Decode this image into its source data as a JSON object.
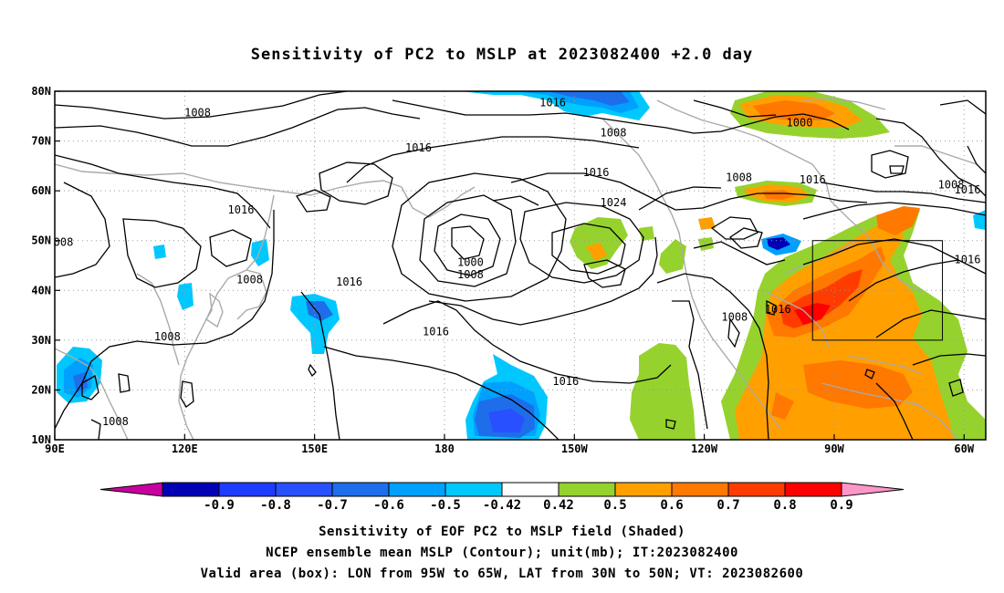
{
  "title": "Sensitivity of PC2 to MSLP at 2023082400 +2.0 day",
  "map": {
    "lon_range": [
      90,
      305
    ],
    "lat_range": [
      10,
      80
    ],
    "lon_ticks": [
      {
        "lon": 90,
        "label": "90E"
      },
      {
        "lon": 120,
        "label": "120E"
      },
      {
        "lon": 150,
        "label": "150E"
      },
      {
        "lon": 180,
        "label": "180"
      },
      {
        "lon": 210,
        "label": "150W"
      },
      {
        "lon": 240,
        "label": "120W"
      },
      {
        "lon": 270,
        "label": "90W"
      },
      {
        "lon": 300,
        "label": "60W"
      }
    ],
    "lat_ticks": [
      {
        "lat": 10,
        "label": "10N"
      },
      {
        "lat": 20,
        "label": "20N"
      },
      {
        "lat": 30,
        "label": "30N"
      },
      {
        "lat": 40,
        "label": "40N"
      },
      {
        "lat": 50,
        "label": "50N"
      },
      {
        "lat": 60,
        "label": "60N"
      },
      {
        "lat": 70,
        "label": "70N"
      },
      {
        "lat": 80,
        "label": "80N"
      }
    ],
    "grid": "dotted",
    "valid_box": {
      "lon_min": 265,
      "lon_max": 295,
      "lat_min": 30,
      "lat_max": 50
    },
    "contour_labels": [
      {
        "lon": 123,
        "lat": 75.5,
        "text": "1008"
      },
      {
        "lon": 205,
        "lat": 77.5,
        "text": "1016"
      },
      {
        "lon": 219,
        "lat": 71.5,
        "text": "1008"
      },
      {
        "lon": 262,
        "lat": 73.5,
        "text": "1000"
      },
      {
        "lon": 174,
        "lat": 68.5,
        "text": "1016"
      },
      {
        "lon": 215,
        "lat": 63.5,
        "text": "1016"
      },
      {
        "lon": 248,
        "lat": 62.5,
        "text": "1008"
      },
      {
        "lon": 265,
        "lat": 62,
        "text": "1016"
      },
      {
        "lon": 297,
        "lat": 61,
        "text": "1008"
      },
      {
        "lon": 304,
        "lat": 60,
        "text": "1016"
      },
      {
        "lon": 219,
        "lat": 57.5,
        "text": "1024"
      },
      {
        "lon": 133,
        "lat": 56,
        "text": "1016"
      },
      {
        "lon": 92,
        "lat": 49.5,
        "text": "008"
      },
      {
        "lon": 186,
        "lat": 45.5,
        "text": "1000"
      },
      {
        "lon": 186,
        "lat": 43,
        "text": "1008"
      },
      {
        "lon": 135,
        "lat": 42,
        "text": "1008"
      },
      {
        "lon": 158,
        "lat": 41.5,
        "text": "1016"
      },
      {
        "lon": 304,
        "lat": 46,
        "text": "1016"
      },
      {
        "lon": 257,
        "lat": 36,
        "text": "1016"
      },
      {
        "lon": 247,
        "lat": 34.5,
        "text": "1008"
      },
      {
        "lon": 178,
        "lat": 31.5,
        "text": "1016"
      },
      {
        "lon": 116,
        "lat": 30.5,
        "text": "1008"
      },
      {
        "lon": 208,
        "lat": 21.5,
        "text": "1016"
      },
      {
        "lon": 104,
        "lat": 13.5,
        "text": "1008"
      }
    ]
  },
  "colorbar": {
    "labels": [
      "-0.9",
      "-0.8",
      "-0.7",
      "-0.6",
      "-0.5",
      "-0.42",
      "0.42",
      "0.5",
      "0.6",
      "0.7",
      "0.8",
      "0.9"
    ],
    "colors": [
      "#0000b4",
      "#1e3cff",
      "#2850ff",
      "#1e6eeb",
      "#00a0ff",
      "#00c8ff",
      "#ffffff",
      "#96d22d",
      "#ffa000",
      "#ff7800",
      "#ff3c00",
      "#ff0000"
    ],
    "under_color": "#c800a0",
    "over_color": "#ff96c8"
  },
  "caption": {
    "line1": "Sensitivity of EOF PC2 to MSLP field (Shaded)",
    "line2": "NCEP ensemble mean MSLP (Contour); unit(mb); IT:2023082400",
    "line3": "Valid area (box): LON from 95W to 65W, LAT from 30N to 50N; VT: 2023082600"
  }
}
